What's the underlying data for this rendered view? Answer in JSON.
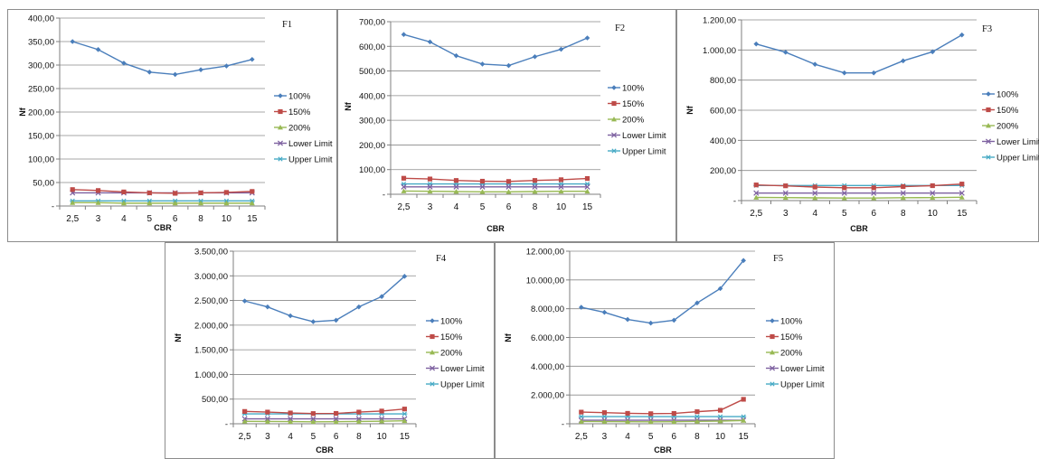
{
  "chart_data": [
    {
      "type": "line",
      "title": "F1",
      "xlabel": "CBR",
      "ylabel": "Nf",
      "categories": [
        "2,5",
        "3",
        "4",
        "5",
        "6",
        "8",
        "10",
        "15"
      ],
      "ylim": [
        0,
        400
      ],
      "yticks": [
        "-",
        "50,00",
        "100,00",
        "150,00",
        "200,00",
        "250,00",
        "300,00",
        "350,00",
        "400,00"
      ],
      "grid": true,
      "legend_position": "right",
      "series": [
        {
          "name": "100%",
          "color": "#4a7ebb",
          "marker": "diamond",
          "values": [
            350,
            333,
            304,
            285,
            280,
            290,
            298,
            312
          ]
        },
        {
          "name": "150%",
          "color": "#be4b48",
          "marker": "square",
          "values": [
            35,
            33,
            30,
            28,
            27,
            28,
            29,
            31
          ]
        },
        {
          "name": "200%",
          "color": "#98b954",
          "marker": "triangle",
          "values": [
            7,
            7,
            6,
            6,
            6,
            6,
            6,
            6
          ]
        },
        {
          "name": "Lower Limit",
          "color": "#7d60a0",
          "marker": "x",
          "values": [
            28,
            28,
            28,
            28,
            28,
            28,
            28,
            28
          ]
        },
        {
          "name": "Upper Limit",
          "color": "#46aac5",
          "marker": "star",
          "values": [
            11,
            11,
            11,
            11,
            11,
            11,
            11,
            11
          ]
        }
      ]
    },
    {
      "type": "line",
      "title": "F2",
      "xlabel": "CBR",
      "ylabel": "Nf",
      "categories": [
        "2,5",
        "3",
        "4",
        "5",
        "6",
        "8",
        "10",
        "15"
      ],
      "ylim": [
        0,
        700
      ],
      "yticks": [
        "-",
        "100,00",
        "200,00",
        "300,00",
        "400,00",
        "500,00",
        "600,00",
        "700,00"
      ],
      "grid": true,
      "legend_position": "right",
      "series": [
        {
          "name": "100%",
          "color": "#4a7ebb",
          "marker": "diamond",
          "values": [
            648,
            618,
            562,
            528,
            522,
            558,
            588,
            634
          ]
        },
        {
          "name": "150%",
          "color": "#be4b48",
          "marker": "square",
          "values": [
            65,
            62,
            56,
            53,
            52,
            56,
            59,
            64
          ]
        },
        {
          "name": "200%",
          "color": "#98b954",
          "marker": "triangle",
          "values": [
            13,
            12,
            11,
            10,
            10,
            11,
            12,
            12
          ]
        },
        {
          "name": "Lower Limit",
          "color": "#7d60a0",
          "marker": "x",
          "values": [
            30,
            30,
            30,
            30,
            30,
            30,
            30,
            30
          ]
        },
        {
          "name": "Upper Limit",
          "color": "#46aac5",
          "marker": "star",
          "values": [
            42,
            42,
            42,
            42,
            42,
            42,
            42,
            42
          ]
        }
      ]
    },
    {
      "type": "line",
      "title": "F3",
      "xlabel": "CBR",
      "ylabel": "Nf",
      "categories": [
        "2,5",
        "3",
        "4",
        "5",
        "6",
        "8",
        "10",
        "15"
      ],
      "ylim": [
        0,
        1200
      ],
      "yticks": [
        "-",
        "200,00",
        "400,00",
        "600,00",
        "800,00",
        "1.000,00",
        "1.200,00"
      ],
      "grid": true,
      "legend_position": "right",
      "series": [
        {
          "name": "100%",
          "color": "#4a7ebb",
          "marker": "diamond",
          "values": [
            1040,
            985,
            905,
            848,
            848,
            928,
            988,
            1100
          ]
        },
        {
          "name": "150%",
          "color": "#be4b48",
          "marker": "square",
          "values": [
            104,
            98,
            90,
            85,
            85,
            93,
            99,
            110
          ]
        },
        {
          "name": "200%",
          "color": "#98b954",
          "marker": "triangle",
          "values": [
            21,
            20,
            18,
            17,
            17,
            19,
            20,
            22
          ]
        },
        {
          "name": "Lower Limit",
          "color": "#7d60a0",
          "marker": "x",
          "values": [
            50,
            50,
            50,
            50,
            50,
            50,
            50,
            50
          ]
        },
        {
          "name": "Upper Limit",
          "color": "#46aac5",
          "marker": "star",
          "values": [
            100,
            100,
            100,
            100,
            100,
            100,
            100,
            100
          ]
        }
      ]
    },
    {
      "type": "line",
      "title": "F4",
      "xlabel": "CBR",
      "ylabel": "Nf",
      "categories": [
        "2,5",
        "3",
        "4",
        "5",
        "6",
        "8",
        "10",
        "15"
      ],
      "ylim": [
        0,
        3500
      ],
      "yticks": [
        "-",
        "500,00",
        "1.000,00",
        "1.500,00",
        "2.000,00",
        "2.500,00",
        "3.000,00",
        "3.500,00"
      ],
      "grid": true,
      "legend_position": "right",
      "series": [
        {
          "name": "100%",
          "color": "#4a7ebb",
          "marker": "diamond",
          "values": [
            2490,
            2370,
            2190,
            2070,
            2100,
            2370,
            2580,
            2990
          ]
        },
        {
          "name": "150%",
          "color": "#be4b48",
          "marker": "square",
          "values": [
            250,
            237,
            219,
            207,
            210,
            237,
            258,
            299
          ]
        },
        {
          "name": "200%",
          "color": "#98b954",
          "marker": "triangle",
          "values": [
            50,
            47,
            44,
            41,
            42,
            47,
            52,
            60
          ]
        },
        {
          "name": "Lower Limit",
          "color": "#7d60a0",
          "marker": "x",
          "values": [
            100,
            100,
            100,
            100,
            100,
            100,
            100,
            100
          ]
        },
        {
          "name": "Upper Limit",
          "color": "#46aac5",
          "marker": "star",
          "values": [
            200,
            200,
            200,
            200,
            200,
            200,
            200,
            200
          ]
        }
      ]
    },
    {
      "type": "line",
      "title": "F5",
      "xlabel": "CBR",
      "ylabel": "Nf",
      "categories": [
        "2,5",
        "3",
        "4",
        "5",
        "6",
        "8",
        "10",
        "15"
      ],
      "ylim": [
        0,
        12000
      ],
      "yticks": [
        "-",
        "2.000,00",
        "4.000,00",
        "6.000,00",
        "8.000,00",
        "10.000,00",
        "12.000,00"
      ],
      "grid": true,
      "legend_position": "right",
      "series": [
        {
          "name": "100%",
          "color": "#4a7ebb",
          "marker": "diamond",
          "values": [
            8100,
            7750,
            7250,
            7000,
            7200,
            8400,
            9400,
            11350
          ]
        },
        {
          "name": "150%",
          "color": "#be4b48",
          "marker": "square",
          "values": [
            810,
            775,
            725,
            700,
            720,
            840,
            940,
            1700
          ]
        },
        {
          "name": "200%",
          "color": "#98b954",
          "marker": "triangle",
          "values": [
            160,
            155,
            145,
            140,
            144,
            168,
            188,
            227
          ]
        },
        {
          "name": "Lower Limit",
          "color": "#7d60a0",
          "marker": "x",
          "values": [
            250,
            250,
            250,
            250,
            250,
            250,
            250,
            250
          ]
        },
        {
          "name": "Upper Limit",
          "color": "#46aac5",
          "marker": "star",
          "values": [
            500,
            500,
            500,
            500,
            500,
            500,
            500,
            500
          ]
        }
      ]
    }
  ]
}
